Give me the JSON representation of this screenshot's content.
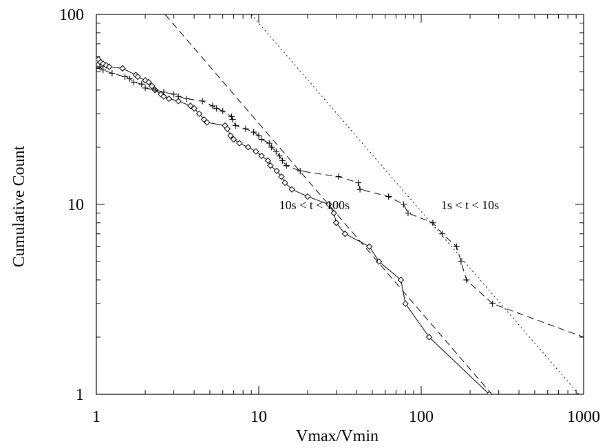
{
  "chart_data": {
    "type": "line",
    "xscale": "log",
    "yscale": "log",
    "xlim": [
      1,
      1000
    ],
    "ylim": [
      1,
      100
    ],
    "xlabel": "Vmax/Vmin",
    "ylabel": "Cumulative Count",
    "x_ticks": [
      1,
      10,
      100,
      1000
    ],
    "x_tick_labels": [
      "1",
      "10",
      "100",
      "1000"
    ],
    "y_ticks": [
      1,
      10,
      100
    ],
    "y_tick_labels": [
      "1",
      "10",
      "100"
    ],
    "grid": false,
    "annotations": [
      {
        "text": "10s < t < 100s",
        "x": 22,
        "y": 10
      },
      {
        "text": "1s < t < 10s",
        "x": 200,
        "y": 10
      }
    ],
    "series": [
      {
        "style": "solid",
        "marker": "diamond",
        "points": [
          [
            1.0,
            57
          ],
          [
            1.03,
            58
          ],
          [
            1.06,
            56
          ],
          [
            1.1,
            55
          ],
          [
            1.15,
            54
          ],
          [
            1.2,
            53
          ],
          [
            1.45,
            52
          ],
          [
            1.75,
            48
          ],
          [
            1.8,
            47
          ],
          [
            2.0,
            45
          ],
          [
            2.1,
            44
          ],
          [
            2.2,
            42
          ],
          [
            2.3,
            40
          ],
          [
            2.5,
            38
          ],
          [
            2.6,
            37
          ],
          [
            2.8,
            36
          ],
          [
            3.2,
            35
          ],
          [
            3.8,
            33
          ],
          [
            4.0,
            32
          ],
          [
            4.3,
            30
          ],
          [
            4.6,
            28
          ],
          [
            4.8,
            27
          ],
          [
            6.2,
            26
          ],
          [
            6.4,
            25
          ],
          [
            6.7,
            23
          ],
          [
            7.0,
            22
          ],
          [
            7.6,
            21
          ],
          [
            8.6,
            20
          ],
          [
            9.6,
            19
          ],
          [
            10.4,
            18
          ],
          [
            11.4,
            17
          ],
          [
            11.8,
            16
          ],
          [
            12.9,
            15
          ],
          [
            13.8,
            14
          ],
          [
            14.5,
            13
          ],
          [
            16.0,
            12
          ],
          [
            20.0,
            11
          ],
          [
            27.0,
            10
          ],
          [
            29.0,
            9
          ],
          [
            30.0,
            8
          ],
          [
            34.0,
            7
          ],
          [
            48.0,
            6
          ],
          [
            55.0,
            5
          ],
          [
            75.0,
            4
          ],
          [
            80.0,
            3
          ],
          [
            112.0,
            2
          ],
          [
            263.0,
            1
          ]
        ]
      },
      {
        "style": "dashed",
        "marker": "plus",
        "points": [
          [
            1.0,
            52
          ],
          [
            1.05,
            53
          ],
          [
            1.1,
            51
          ],
          [
            1.25,
            49
          ],
          [
            1.5,
            47
          ],
          [
            1.6,
            46
          ],
          [
            1.7,
            44
          ],
          [
            1.9,
            43
          ],
          [
            2.0,
            41
          ],
          [
            2.3,
            40
          ],
          [
            2.6,
            39
          ],
          [
            3.0,
            38
          ],
          [
            3.2,
            37
          ],
          [
            3.6,
            36
          ],
          [
            4.5,
            35
          ],
          [
            5.2,
            33
          ],
          [
            5.5,
            32
          ],
          [
            6.0,
            31
          ],
          [
            6.8,
            29
          ],
          [
            6.9,
            28
          ],
          [
            7.2,
            26
          ],
          [
            8.3,
            25
          ],
          [
            9.3,
            24
          ],
          [
            10.0,
            23
          ],
          [
            10.4,
            22
          ],
          [
            11.6,
            21
          ],
          [
            12.0,
            20
          ],
          [
            12.8,
            19
          ],
          [
            13.4,
            18
          ],
          [
            14.0,
            17
          ],
          [
            14.8,
            16
          ],
          [
            18.0,
            15
          ],
          [
            31.0,
            14
          ],
          [
            41.0,
            13
          ],
          [
            42.0,
            12
          ],
          [
            63.0,
            11
          ],
          [
            78.0,
            10
          ],
          [
            83.0,
            9
          ],
          [
            118.0,
            8
          ],
          [
            135.0,
            7
          ],
          [
            165.0,
            6
          ],
          [
            176.0,
            5
          ],
          [
            190.0,
            4
          ],
          [
            275.0,
            3
          ],
          [
            1000.0,
            2
          ]
        ]
      },
      {
        "style": "dashed",
        "marker": "none",
        "points": [
          [
            2.65,
            100
          ],
          [
            272.0,
            1
          ]
        ]
      },
      {
        "style": "dotted",
        "marker": "none",
        "points": [
          [
            9.0,
            100
          ],
          [
            935.0,
            1
          ]
        ]
      }
    ]
  }
}
